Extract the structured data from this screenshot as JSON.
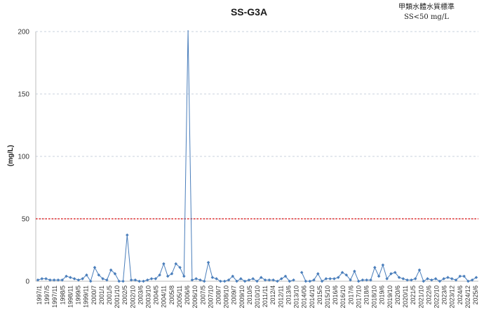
{
  "chart_data": {
    "type": "line",
    "title": "SS-G3A",
    "standard_note": [
      "甲類水體水質標準",
      "SS<50 mg/L"
    ],
    "ylabel": "(mg/L)",
    "xlabel": "",
    "ylim": [
      0,
      200
    ],
    "y_ticks": [
      0,
      50,
      100,
      150,
      200
    ],
    "grid": "horizontal dashed",
    "x_tick_labels": [
      "1997/1",
      "1997/5",
      "1997/11",
      "1998/5",
      "1998/11",
      "1999/5",
      "1999/11",
      "2000/7",
      "2001/1",
      "2001/5",
      "2001/10",
      "2002/5",
      "2002/10",
      "2003/6",
      "2003/10",
      "2004/5",
      "2004/11",
      "2005/8",
      "2005/11",
      "2006/6",
      "2006/10",
      "2007/5",
      "2007/10",
      "2008/7",
      "2008/10",
      "2009/7",
      "2009/10",
      "2010/5",
      "2010/10",
      "2011/11",
      "2012/4",
      "2012/11",
      "2013/6",
      "2013/10",
      "2014/06",
      "2014/10",
      "2015/5",
      "2015/10",
      "2016/6",
      "2016/10",
      "2017/6",
      "2017/10",
      "2018/6",
      "2018/10",
      "2019/6",
      "2019/10",
      "2020/6",
      "2020/11",
      "2021/5",
      "2021/10",
      "2022/6",
      "2022/10",
      "2023/6",
      "2023/12",
      "2024/6",
      "2024/12",
      "2025/6"
    ],
    "threshold": {
      "value": 50,
      "color": "#e03030"
    },
    "series": [
      {
        "color": "#4a7ebb",
        "values": [
          1,
          2,
          2,
          1,
          1,
          1,
          1,
          4,
          3,
          2,
          1,
          2,
          5,
          0,
          11,
          5,
          2,
          1,
          9,
          6,
          0,
          0,
          37,
          1,
          1,
          0,
          0,
          1,
          2,
          2,
          5,
          14,
          4,
          6,
          14,
          11,
          4,
          250,
          1,
          2,
          1,
          0,
          15,
          3,
          2,
          0,
          0,
          1,
          4,
          0,
          2,
          0,
          1,
          2,
          0,
          3,
          1,
          1,
          1,
          0,
          2,
          4,
          0,
          1,
          null,
          7,
          0,
          0,
          1,
          6,
          0,
          2,
          2,
          2,
          3,
          7,
          5,
          1,
          8,
          0,
          1,
          1,
          1,
          11,
          4,
          13,
          2,
          6,
          7,
          3,
          2,
          1,
          1,
          2,
          9,
          0,
          2,
          1,
          2,
          0,
          2,
          3,
          2,
          1,
          4,
          4,
          0,
          1,
          3
        ]
      }
    ]
  }
}
